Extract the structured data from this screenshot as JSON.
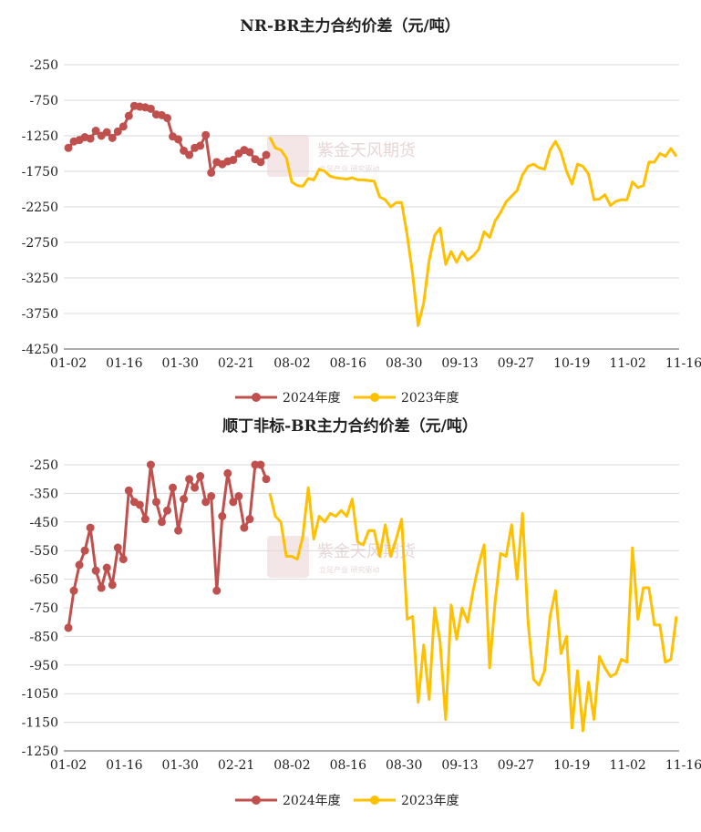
{
  "colors": {
    "series_2024": "#c0504d",
    "series_2023": "#ffc000",
    "grid": "#d9d9d9",
    "axis": "#595959"
  },
  "watermark": {
    "name": "紫金天风期货",
    "sub": "立足产业 研究驱动"
  },
  "chart_data": [
    {
      "type": "line",
      "title": "NR-BR主力合约价差（元/吨）",
      "ylim": [
        -4250,
        -250
      ],
      "yticks": [
        -250,
        -750,
        -1250,
        -1750,
        -2250,
        -2750,
        -3250,
        -3750,
        -4250
      ],
      "xticks": [
        "01-02",
        "01-16",
        "01-30",
        "02-21",
        "08-02",
        "08-16",
        "08-30",
        "09-13",
        "09-27",
        "10-19",
        "11-02",
        "11-16"
      ],
      "legend": "bottom",
      "grid": true,
      "series": [
        {
          "name": "2024年度",
          "color_key": "series_2024",
          "values": [
            -1420,
            -1330,
            -1310,
            -1270,
            -1290,
            -1180,
            -1250,
            -1200,
            -1280,
            -1190,
            -1120,
            -970,
            -830,
            -840,
            -850,
            -870,
            -950,
            -960,
            -1000,
            -1260,
            -1300,
            -1460,
            -1520,
            -1420,
            -1390,
            -1240,
            -1770,
            -1620,
            -1650,
            -1610,
            -1590,
            -1500,
            -1450,
            -1480,
            -1580,
            -1620,
            -1520
          ]
        },
        {
          "name": "2023年度",
          "color_key": "series_2023",
          "values": [
            -1270,
            -1420,
            -1450,
            -1560,
            -1900,
            -1950,
            -1960,
            -1850,
            -1870,
            -1720,
            -1750,
            -1820,
            -1840,
            -1850,
            -1860,
            -1840,
            -1870,
            -1870,
            -1880,
            -1890,
            -2110,
            -2150,
            -2250,
            -2190,
            -2190,
            -2650,
            -3200,
            -3920,
            -3600,
            -3000,
            -2650,
            -2550,
            -3060,
            -2880,
            -3030,
            -2880,
            -3000,
            -2940,
            -2850,
            -2600,
            -2680,
            -2450,
            -2330,
            -2180,
            -2100,
            -2020,
            -1800,
            -1680,
            -1650,
            -1700,
            -1720,
            -1450,
            -1330,
            -1480,
            -1750,
            -1930,
            -1650,
            -1680,
            -1790,
            -2150,
            -2140,
            -2080,
            -2230,
            -2170,
            -2150,
            -2150,
            -1900,
            -1980,
            -1950,
            -1620,
            -1620,
            -1500,
            -1540,
            -1430,
            -1540
          ]
        }
      ]
    },
    {
      "type": "line",
      "title": "顺丁非标-BR主力合约价差（元/吨）",
      "ylim": [
        -1250,
        -250
      ],
      "yticks": [
        -250,
        -350,
        -450,
        -550,
        -650,
        -750,
        -850,
        -950,
        -1050,
        -1150,
        -1250
      ],
      "xticks": [
        "01-02",
        "01-16",
        "01-30",
        "02-21",
        "08-02",
        "08-16",
        "08-30",
        "09-13",
        "09-27",
        "10-19",
        "11-02",
        "11-16"
      ],
      "legend": "bottom",
      "grid": true,
      "series": [
        {
          "name": "2024年度",
          "color_key": "series_2024",
          "values": [
            -820,
            -690,
            -600,
            -550,
            -470,
            -620,
            -680,
            -610,
            -670,
            -540,
            -580,
            -340,
            -380,
            -390,
            -440,
            -250,
            -380,
            -450,
            -410,
            -330,
            -480,
            -370,
            -300,
            -330,
            -290,
            -380,
            -360,
            -690,
            -430,
            -280,
            -380,
            -360,
            -470,
            -440,
            -250,
            -250,
            -300
          ]
        },
        {
          "name": "2023年度",
          "color_key": "series_2023",
          "values": [
            -350,
            -430,
            -450,
            -570,
            -570,
            -580,
            -500,
            -330,
            -510,
            -430,
            -450,
            -420,
            -430,
            -410,
            -430,
            -370,
            -520,
            -530,
            -480,
            -480,
            -570,
            -460,
            -570,
            -510,
            -440,
            -790,
            -780,
            -1080,
            -880,
            -1070,
            -750,
            -870,
            -1140,
            -740,
            -860,
            -750,
            -800,
            -690,
            -600,
            -530,
            -960,
            -730,
            -560,
            -570,
            -460,
            -650,
            -420,
            -800,
            -1000,
            -1020,
            -970,
            -780,
            -690,
            -910,
            -850,
            -1170,
            -970,
            -1180,
            -1010,
            -1140,
            -920,
            -960,
            -990,
            -980,
            -930,
            -940,
            -540,
            -790,
            -680,
            -680,
            -810,
            -810,
            -940,
            -930,
            -780
          ]
        }
      ]
    }
  ]
}
